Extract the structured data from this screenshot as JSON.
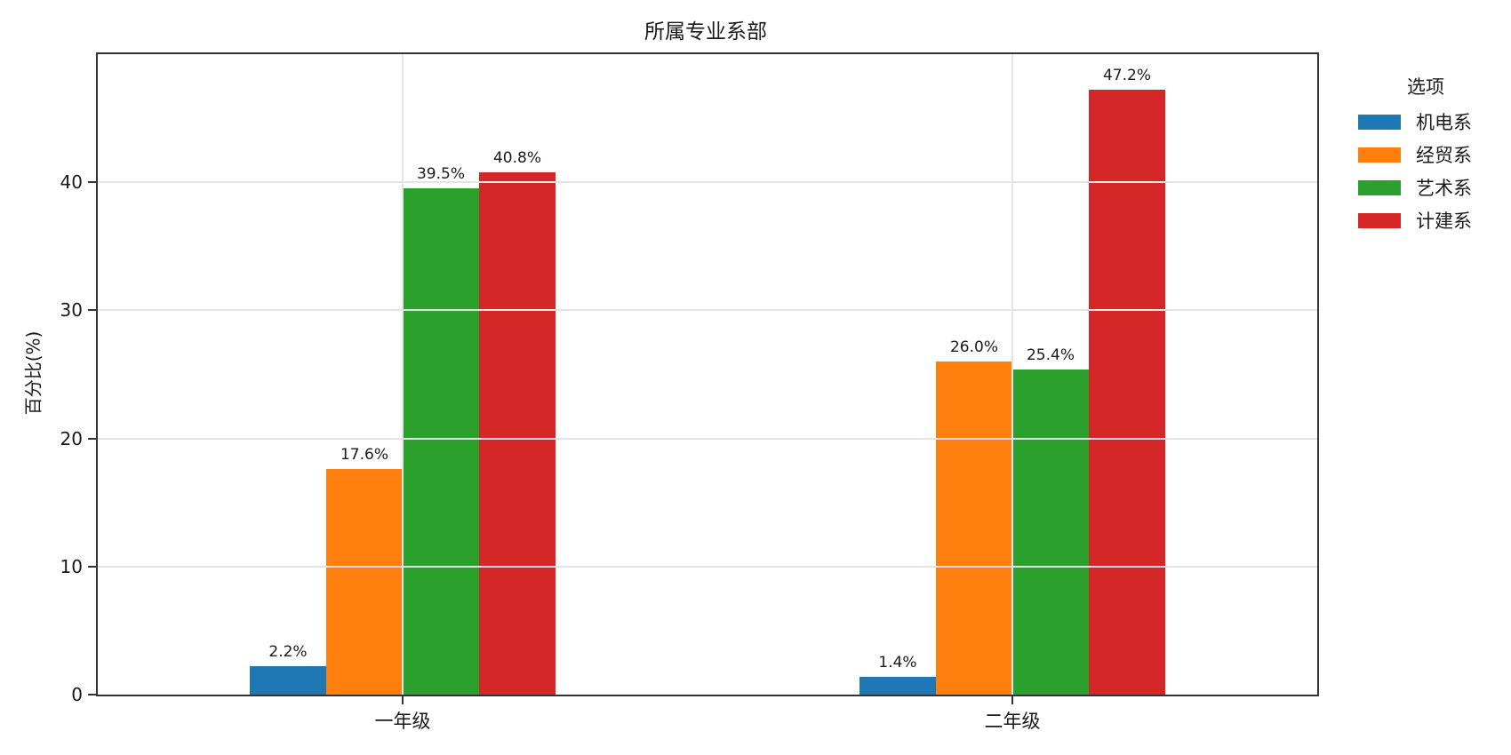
{
  "chart_data": {
    "type": "bar",
    "title": "所属专业系部",
    "xlabel": "",
    "ylabel": "百分比(%)",
    "categories": [
      "一年级",
      "二年级"
    ],
    "series": [
      {
        "name": "机电系",
        "color": "#1f77b4",
        "values": [
          2.2,
          1.4
        ]
      },
      {
        "name": "经贸系",
        "color": "#ff7f0e",
        "values": [
          17.6,
          26.0
        ]
      },
      {
        "name": "艺术系",
        "color": "#2ca02c",
        "values": [
          39.5,
          25.4
        ]
      },
      {
        "name": "计建系",
        "color": "#d62728",
        "values": [
          40.8,
          47.2
        ]
      }
    ],
    "value_labels": [
      [
        "2.2%",
        "17.6%",
        "39.5%",
        "40.8%"
      ],
      [
        "1.4%",
        "26.0%",
        "25.4%",
        "47.2%"
      ]
    ],
    "legend_title": "选项",
    "legend_position": "right",
    "yticks": [
      0,
      10,
      20,
      30,
      40
    ],
    "ylim": [
      0,
      50
    ],
    "grid": true,
    "grid_color": "#e4e4e4",
    "spine_color": "#333333",
    "text_color": "#1a1a1a",
    "unit": "%"
  }
}
